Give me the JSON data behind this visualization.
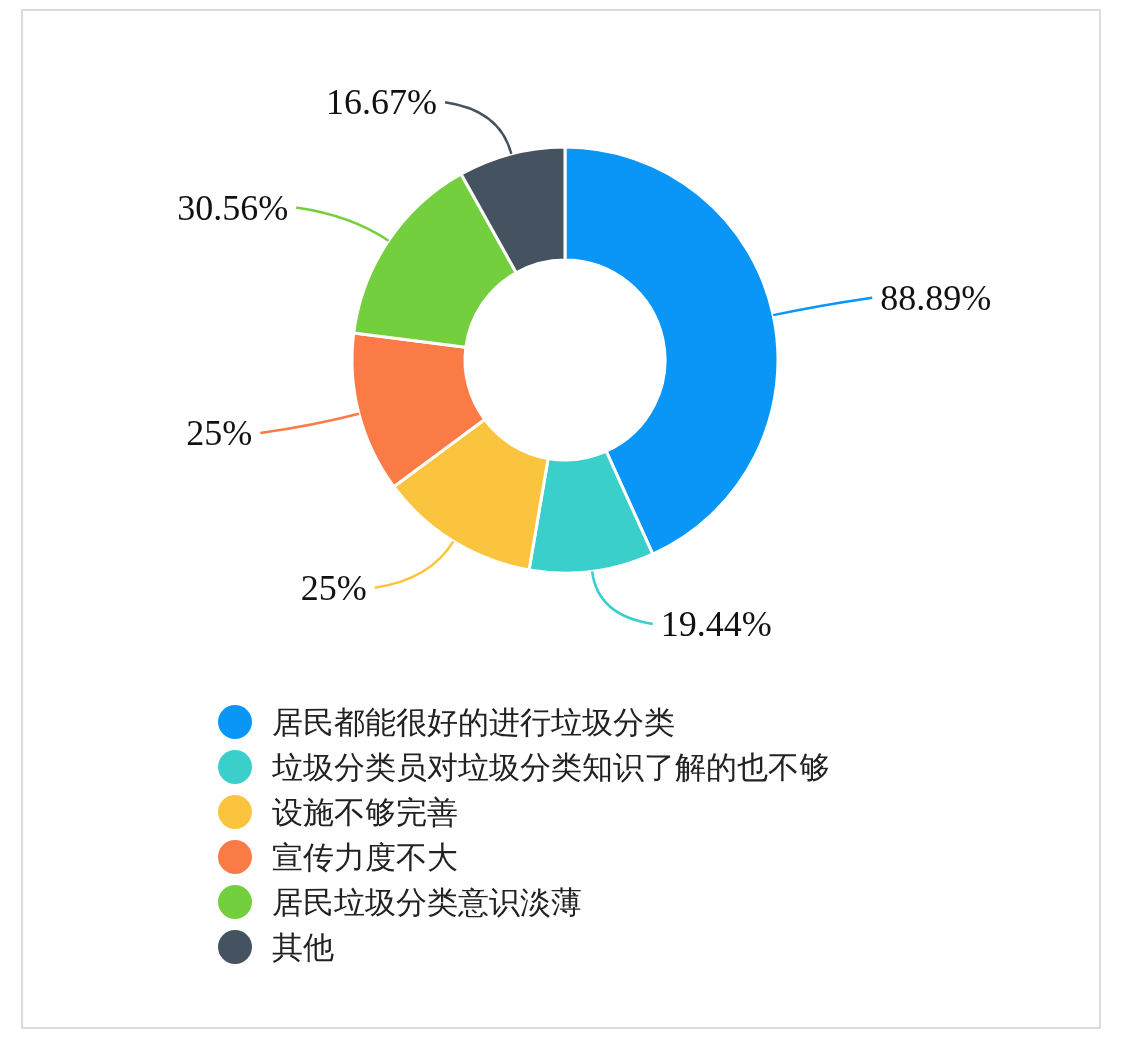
{
  "chart_data": {
    "type": "donut",
    "categories": [
      "居民都能很好的进行垃圾分类",
      "垃圾分类员对垃圾分类知识了解的也不够",
      "设施不够完善",
      "宣传力度不大",
      "居民垃圾分类意识淡薄",
      "其他"
    ],
    "values": [
      88.89,
      19.44,
      25,
      25,
      30.56,
      16.67
    ],
    "value_labels": [
      "88.89%",
      "19.44%",
      "25%",
      "25%",
      "30.56%",
      "16.67%"
    ],
    "colors": [
      "#0a96f7",
      "#3bcfcb",
      "#fbc43f",
      "#fb7b46",
      "#74cf3f",
      "#45525f"
    ],
    "legend": "bottom"
  }
}
